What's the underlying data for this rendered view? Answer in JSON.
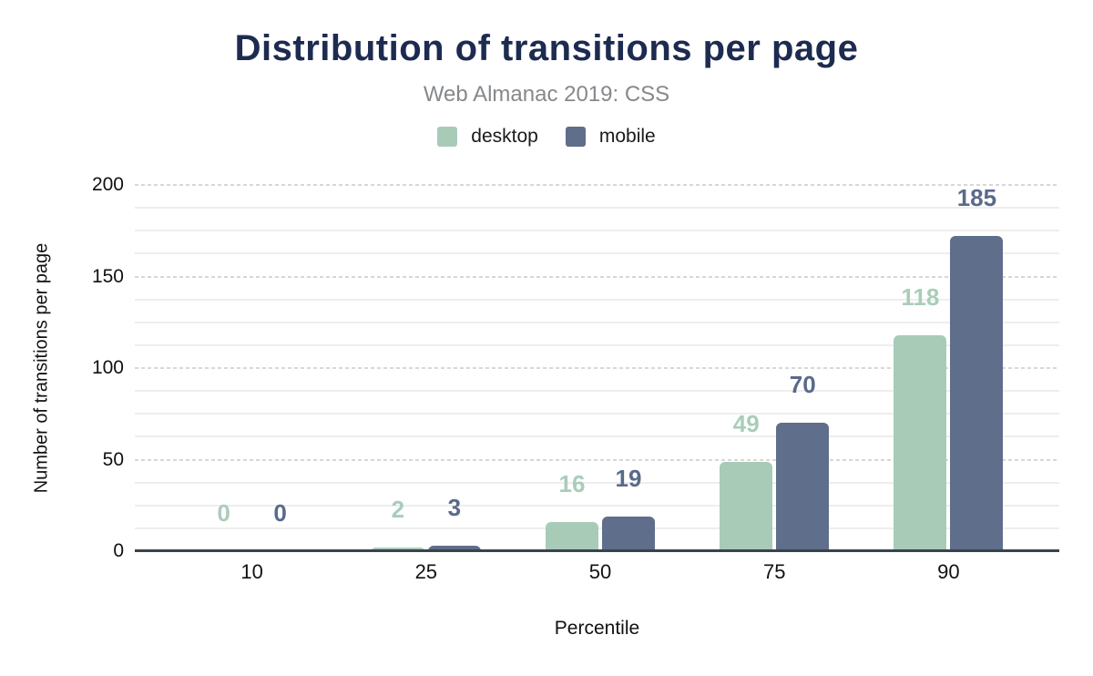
{
  "chart_data": {
    "type": "bar",
    "title": "Distribution of transitions per page",
    "subtitle": "Web Almanac 2019: CSS",
    "xlabel": "Percentile",
    "ylabel": "Number of transitions per page",
    "categories": [
      "10",
      "25",
      "50",
      "75",
      "90"
    ],
    "series": [
      {
        "name": "desktop",
        "color": "#a8cbb8",
        "label_color": "#a9cdb9",
        "values": [
          0,
          2,
          16,
          49,
          118
        ]
      },
      {
        "name": "mobile",
        "color": "#5f6e8a",
        "label_color": "#5a6a89",
        "values": [
          0,
          3,
          19,
          70,
          185
        ]
      }
    ],
    "ylim": [
      0,
      200
    ],
    "yticks": [
      0,
      50,
      100,
      150,
      200
    ],
    "grid": {
      "minor_step": 12.5,
      "major_step": 50,
      "on": true
    },
    "legend_position": "top",
    "colors": {
      "title": "#1d2b50",
      "subtitle": "#85898c",
      "axis_text": "#111111",
      "baseline": "#3a434c",
      "grid_minor": "#eeeeee",
      "grid_major": "#d7d7d7"
    }
  }
}
